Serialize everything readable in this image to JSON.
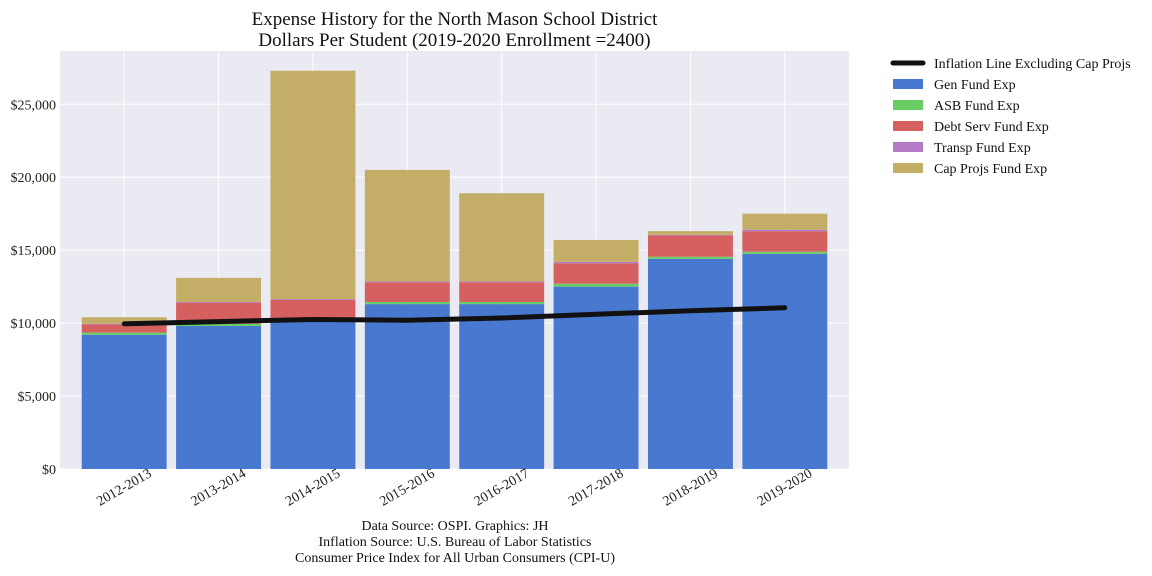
{
  "chart_data": {
    "type": "bar",
    "stacked": true,
    "title": [
      "Expense History for the North Mason School District",
      "Dollars Per Student (2019-2020 Enrollment =2400)"
    ],
    "categories": [
      "2012-2013",
      "2013-2014",
      "2014-2015",
      "2015-2016",
      "2016-2017",
      "2017-2018",
      "2018-2019",
      "2019-2020"
    ],
    "yticks": [
      0,
      5000,
      10000,
      15000,
      20000,
      25000
    ],
    "ytick_labels": [
      "$0",
      "$5,000",
      "$10,000",
      "$15,000",
      "$20,000",
      "$25,000"
    ],
    "ylim": [
      0,
      28650
    ],
    "grid": true,
    "legend_position": "outside-right",
    "series": [
      {
        "name": "Gen Fund Exp",
        "color": "#4878cf",
        "values": [
          9200,
          9800,
          10200,
          11300,
          11300,
          12500,
          14400,
          14750
        ]
      },
      {
        "name": "ASB Fund Exp",
        "color": "#6acc65",
        "values": [
          150,
          150,
          150,
          150,
          150,
          200,
          150,
          150
        ]
      },
      {
        "name": "Debt Serv Fund Exp",
        "color": "#d65f5f",
        "values": [
          550,
          1450,
          1250,
          1350,
          1350,
          1400,
          1450,
          1400
        ]
      },
      {
        "name": "Transp Fund Exp",
        "color": "#b47cc7",
        "values": [
          50,
          50,
          50,
          50,
          50,
          100,
          50,
          100
        ]
      },
      {
        "name": "Cap Projs Fund Exp",
        "color": "#c4ad66",
        "values": [
          450,
          1650,
          15650,
          7650,
          6050,
          1500,
          250,
          1100
        ]
      }
    ],
    "line": {
      "name": "Inflation Line Excluding Cap Projs",
      "color": "#111111",
      "values": [
        9950,
        10100,
        10250,
        10200,
        10350,
        10600,
        10850,
        11050
      ]
    },
    "footnotes": [
      "Data Source: OSPI. Graphics: JH",
      "Inflation Source: U.S. Bureau of Labor Statistics",
      "Consumer Price Index for All Urban Consumers (CPI-U)"
    ]
  }
}
